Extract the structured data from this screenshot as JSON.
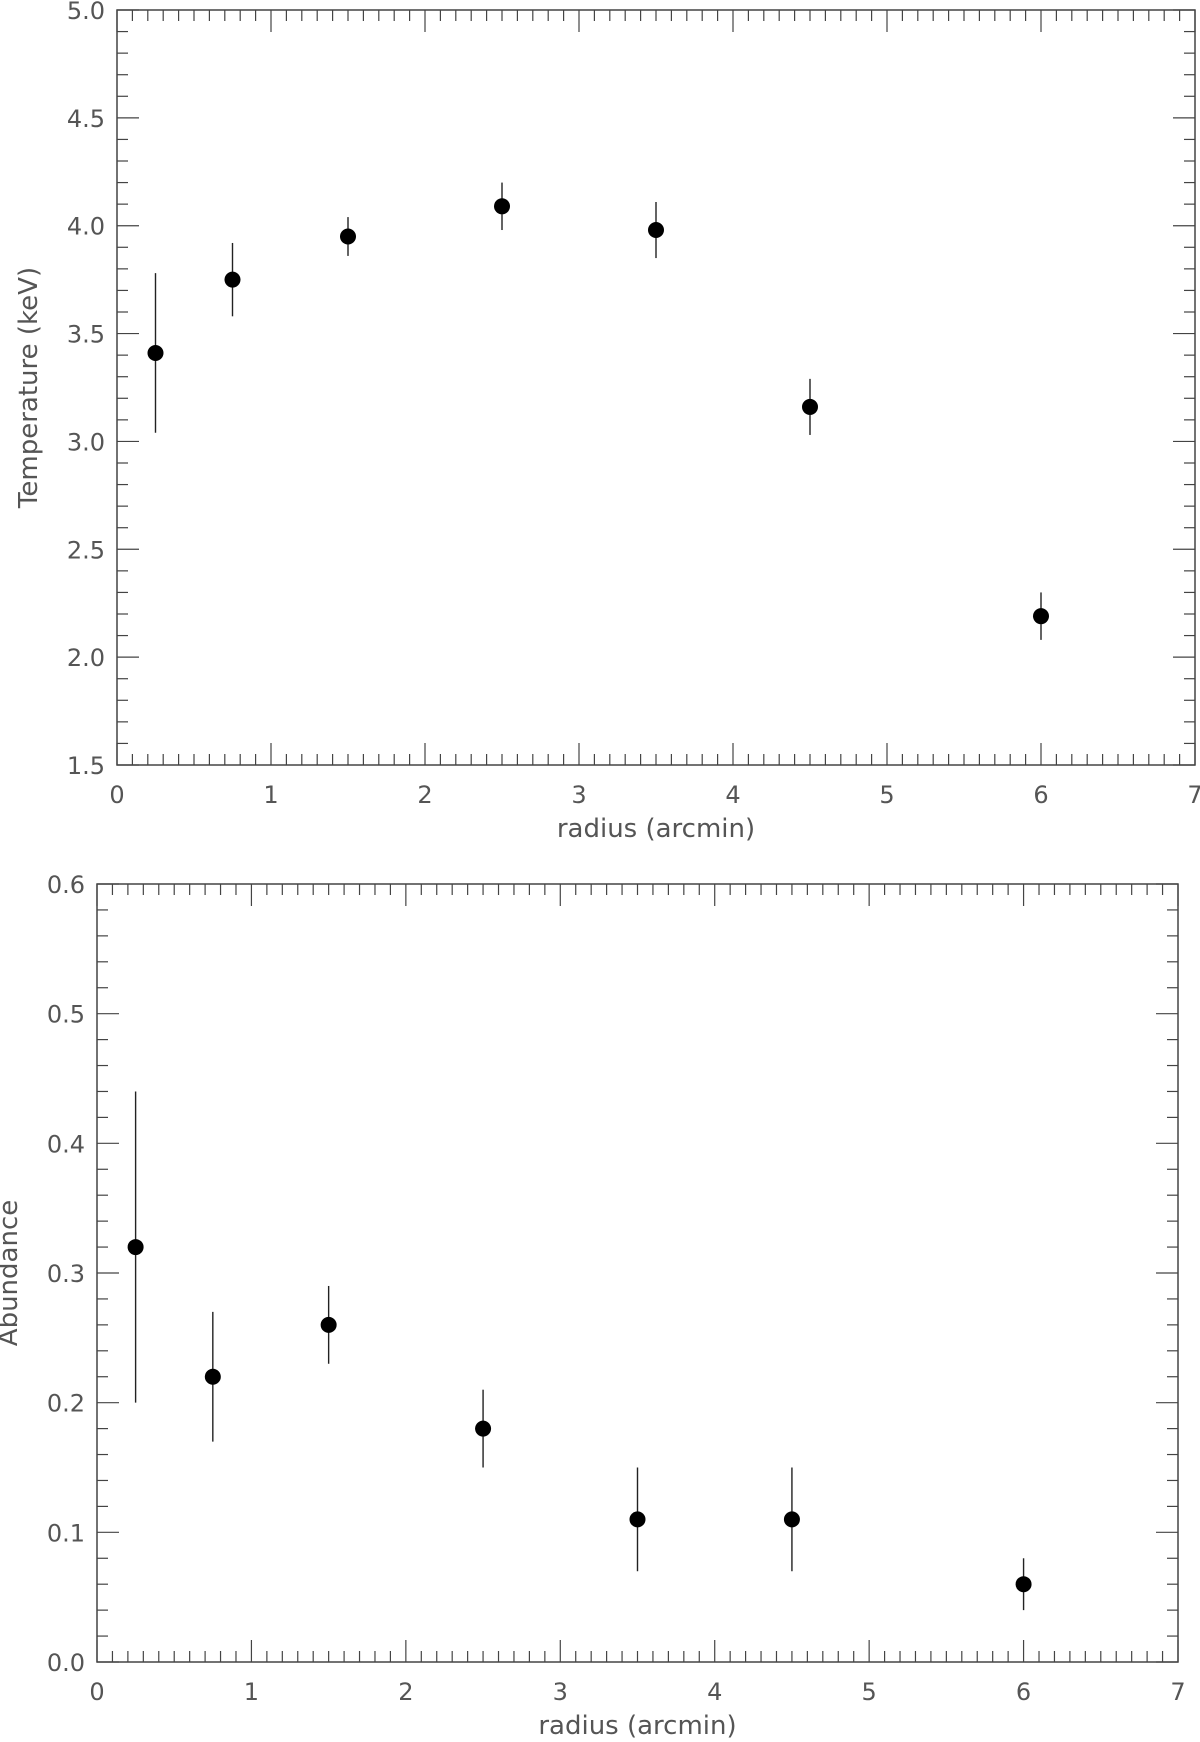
{
  "chart_data": [
    {
      "type": "scatter",
      "title": "",
      "xlabel": "radius (arcmin)",
      "ylabel": "Temperature (keV)",
      "xlim": [
        0,
        7
      ],
      "ylim": [
        1.5,
        5.0
      ],
      "x_ticks": [
        "0",
        "1",
        "2",
        "3",
        "4",
        "5",
        "6",
        "7"
      ],
      "y_ticks": [
        "1.5",
        "2.0",
        "2.5",
        "3.0",
        "3.5",
        "4.0",
        "4.5",
        "5.0"
      ],
      "x_minor_step": 0.1,
      "y_minor_step": 0.1,
      "grid": false,
      "legend": "none",
      "marker_color": "#000000",
      "points": [
        {
          "x": 0.25,
          "y": 3.41,
          "y_low": 3.04,
          "y_high": 3.78
        },
        {
          "x": 0.75,
          "y": 3.75,
          "y_low": 3.58,
          "y_high": 3.92
        },
        {
          "x": 1.5,
          "y": 3.95,
          "y_low": 3.86,
          "y_high": 4.04
        },
        {
          "x": 2.5,
          "y": 4.09,
          "y_low": 3.98,
          "y_high": 4.2
        },
        {
          "x": 3.5,
          "y": 3.98,
          "y_low": 3.85,
          "y_high": 4.11
        },
        {
          "x": 4.5,
          "y": 3.16,
          "y_low": 3.03,
          "y_high": 3.29
        },
        {
          "x": 6.0,
          "y": 2.19,
          "y_low": 2.08,
          "y_high": 2.3
        }
      ]
    },
    {
      "type": "scatter",
      "title": "",
      "xlabel": "radius (arcmin)",
      "ylabel": "Abundance",
      "xlim": [
        0,
        7
      ],
      "ylim": [
        0.0,
        0.6
      ],
      "x_ticks": [
        "0",
        "1",
        "2",
        "3",
        "4",
        "5",
        "6",
        "7"
      ],
      "y_ticks": [
        "0.0",
        "0.1",
        "0.2",
        "0.3",
        "0.4",
        "0.5",
        "0.6"
      ],
      "x_minor_step": 0.1,
      "y_minor_step": 0.02,
      "grid": false,
      "legend": "none",
      "marker_color": "#000000",
      "points": [
        {
          "x": 0.25,
          "y": 0.32,
          "y_low": 0.2,
          "y_high": 0.44
        },
        {
          "x": 0.75,
          "y": 0.22,
          "y_low": 0.17,
          "y_high": 0.27
        },
        {
          "x": 1.5,
          "y": 0.26,
          "y_low": 0.23,
          "y_high": 0.29
        },
        {
          "x": 2.5,
          "y": 0.18,
          "y_low": 0.15,
          "y_high": 0.21
        },
        {
          "x": 3.5,
          "y": 0.11,
          "y_low": 0.07,
          "y_high": 0.15
        },
        {
          "x": 4.5,
          "y": 0.11,
          "y_low": 0.07,
          "y_high": 0.15
        },
        {
          "x": 6.0,
          "y": 0.06,
          "y_low": 0.04,
          "y_high": 0.08
        }
      ]
    }
  ]
}
